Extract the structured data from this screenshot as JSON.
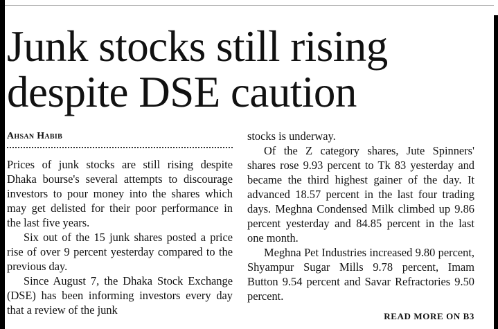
{
  "article": {
    "headline_line1": "Junk stocks still rising",
    "headline_line2": "despite DSE caution",
    "byline": "Ahsan Habib",
    "col1": {
      "p1": "Prices of junk stocks are still rising despite Dhaka bourse's several attempts to dis­courage investors to pour money into the shares which may get delisted for their poor performance in the last five years.",
      "p2": "Six out of the 15 junk shares posted a price rise of over 9 percent yesterday com­pared to the previous day.",
      "p3": "Since August 7, the Dhaka Stock Exchange (DSE) has been informing inves­tors every day that a review of the junk"
    },
    "col2": {
      "p0": "stocks is underway.",
      "p1": "Of the Z category shares, Jute Spinners' shares rose 9.93 percent to Tk 83 yesterday and became the third highest gainer of the day. It advanced 18.57 percent in the last four trading days. Meghna Condensed Milk climbed up 9.86 percent yesterday and 84.85 percent in the last one month.",
      "p2": "Meghna Pet Industries increased 9.80 percent, Shyampur Sugar Mills 9.78 per­cent, Imam Button 9.54 percent and Savar Refractories 9.50 percent."
    },
    "read_more": "READ MORE ON B3"
  }
}
